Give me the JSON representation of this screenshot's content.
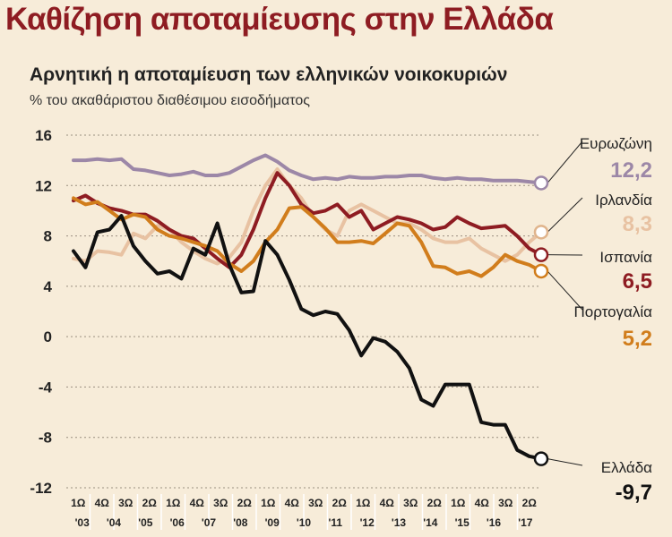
{
  "header": {
    "title": "Καθίζηση αποταμίευσης στην Ελλάδα",
    "subtitle": "Αρνητική η αποταμίευση των ελληνικών νοικοκυριών",
    "unit": "% του ακαθάριστου διαθέσιμου εισοδήματος"
  },
  "chart_data": {
    "type": "line",
    "ylim": [
      -12,
      16
    ],
    "yticks": [
      16,
      12,
      8,
      4,
      0,
      -4,
      -8,
      -12
    ],
    "grid": true,
    "x_quarter_labels": [
      "1Ω",
      "4Ω",
      "3Ω",
      "2Ω",
      "1Ω",
      "4Ω",
      "3Ω",
      "2Ω",
      "1Ω",
      "4Ω",
      "3Ω",
      "2Ω",
      "1Ω",
      "4Ω",
      "3Ω",
      "2Ω",
      "1Ω",
      "4Ω",
      "3Ω",
      "2Ω"
    ],
    "x_year_labels": [
      "'03",
      "'04",
      "'05",
      "'06",
      "'07",
      "'08",
      "'09",
      "'10",
      "'11",
      "'12",
      "'13",
      "'14",
      "'15",
      "'16",
      "'17"
    ],
    "series": [
      {
        "name": "Ευρωζώνη",
        "value_label": "12,2",
        "color": "#9c87a7",
        "values": [
          14.0,
          14.0,
          14.1,
          14.0,
          14.1,
          13.3,
          13.2,
          13.0,
          12.8,
          12.9,
          13.1,
          12.8,
          12.8,
          13.0,
          13.5,
          14.0,
          14.4,
          13.9,
          13.2,
          12.8,
          12.5,
          12.6,
          12.5,
          12.7,
          12.6,
          12.6,
          12.7,
          12.7,
          12.8,
          12.8,
          12.6,
          12.5,
          12.6,
          12.5,
          12.5,
          12.4,
          12.4,
          12.4,
          12.3,
          12.2
        ]
      },
      {
        "name": "Ιρλανδία",
        "value_label": "8,3",
        "color": "#e8c2a2",
        "values": [
          6.2,
          6.0,
          6.8,
          6.7,
          6.5,
          8.2,
          7.8,
          8.8,
          8.5,
          7.5,
          6.8,
          6.2,
          5.8,
          6.3,
          7.5,
          10.0,
          12.0,
          13.3,
          12.0,
          11.0,
          9.5,
          8.5,
          8.0,
          10.0,
          10.5,
          10.0,
          9.5,
          9.0,
          9.0,
          8.5,
          7.8,
          7.5,
          7.5,
          7.8,
          7.0,
          6.5,
          6.0,
          6.5,
          7.5,
          8.3
        ]
      },
      {
        "name": "Ισπανία",
        "value_label": "6,5",
        "color": "#8e1c22",
        "values": [
          10.8,
          11.2,
          10.6,
          10.2,
          10.0,
          9.7,
          9.7,
          9.2,
          8.5,
          8.0,
          7.8,
          7.0,
          6.2,
          5.5,
          6.5,
          8.5,
          11.0,
          13.0,
          12.0,
          10.5,
          9.8,
          10.0,
          10.5,
          9.5,
          10.0,
          8.5,
          9.0,
          9.5,
          9.3,
          9.0,
          8.5,
          8.7,
          9.5,
          9.0,
          8.6,
          8.7,
          8.8,
          8.0,
          7.0,
          6.5
        ]
      },
      {
        "name": "Πορτογαλία",
        "value_label": "5,2",
        "color": "#d17d1c",
        "values": [
          11.0,
          10.5,
          10.7,
          10.0,
          9.3,
          9.7,
          9.5,
          8.5,
          8.0,
          7.8,
          7.5,
          7.2,
          6.8,
          5.8,
          5.2,
          6.0,
          7.5,
          8.5,
          10.2,
          10.3,
          9.5,
          8.6,
          7.5,
          7.5,
          7.6,
          7.4,
          8.2,
          9.0,
          8.8,
          7.5,
          5.6,
          5.5,
          5.0,
          5.2,
          4.8,
          5.5,
          6.5,
          6.0,
          5.7,
          5.2
        ]
      },
      {
        "name": "Ελλάδα",
        "value_label": "-9,7",
        "color": "#111111",
        "values": [
          6.8,
          5.5,
          8.3,
          8.5,
          9.6,
          7.2,
          6.0,
          5.0,
          5.2,
          4.6,
          7.0,
          6.5,
          9.0,
          5.7,
          3.5,
          3.6,
          7.6,
          6.5,
          4.5,
          2.2,
          1.7,
          2.0,
          1.8,
          0.5,
          -1.5,
          -0.1,
          -0.4,
          -1.2,
          -2.5,
          -5.0,
          -5.5,
          -3.8,
          -3.8,
          -3.8,
          -6.8,
          -7.0,
          -7.0,
          -9.0,
          -9.5,
          -9.7
        ]
      }
    ]
  }
}
